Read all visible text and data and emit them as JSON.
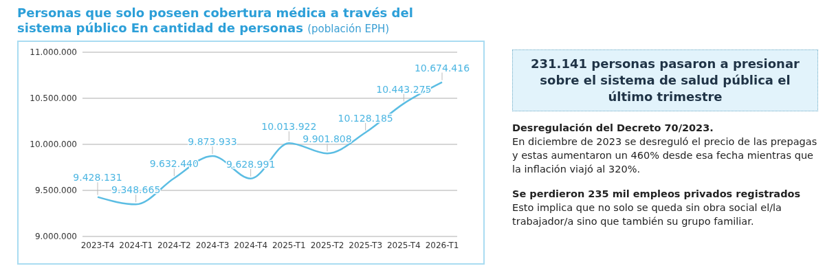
{
  "chart_data": [
    {
      "type": "line",
      "title": "Personas que solo poseen cobertura médica a través del sistema público En cantidad de personas",
      "subtitle": "(población EPH)",
      "categories": [
        "2023-T4",
        "2024-T1",
        "2024-T2",
        "2024-T3",
        "2024-T4",
        "2025-T1",
        "2025-T2",
        "2025-T3",
        "2025-T4",
        "2026-T1"
      ],
      "series": [
        {
          "color": "#5bbde3",
          "values": [
            9428131,
            9348665,
            9632440,
            9873933,
            9628991,
            10013922,
            9901808,
            10128185,
            10443275,
            10674416
          ],
          "value_labels": [
            "9.428.131",
            "9.348.665",
            "9.632.440",
            "9.873.933",
            "9.628.991",
            "10.013.922",
            "9.901.808",
            "10.128.185",
            "10.443.275",
            "10.674.416"
          ]
        }
      ],
      "ylim": [
        9000000,
        11000000
      ],
      "yticks": [
        {
          "value": 9000000,
          "label": "9.000.000"
        },
        {
          "value": 9500000,
          "label": "9.500.000"
        },
        {
          "value": 10000000,
          "label": "10.000.000"
        },
        {
          "value": 10500000,
          "label": "10.500.000"
        },
        {
          "value": 11000000,
          "label": "11.000.000"
        }
      ],
      "grid": "y",
      "marker": "none",
      "line_style": "solid"
    },
    {
      "type": "other",
      "title": "231.141 personas pasaron a presionar sobre el sistema de salud pública el último trimestre",
      "annotations": [
        "Desregulación del Decreto 70/2023.",
        "En diciembre de 2023 se desreguló el precio de las prepagas y estas aumentaron un 460% desde esa fecha mientras que la inflación viajó al 320%.",
        "Se perdieron 235 mil empleos privados registrados",
        "Esto implica que no solo se queda sin obra social el/la trabajador/a sino que también su grupo familiar."
      ]
    }
  ]
}
